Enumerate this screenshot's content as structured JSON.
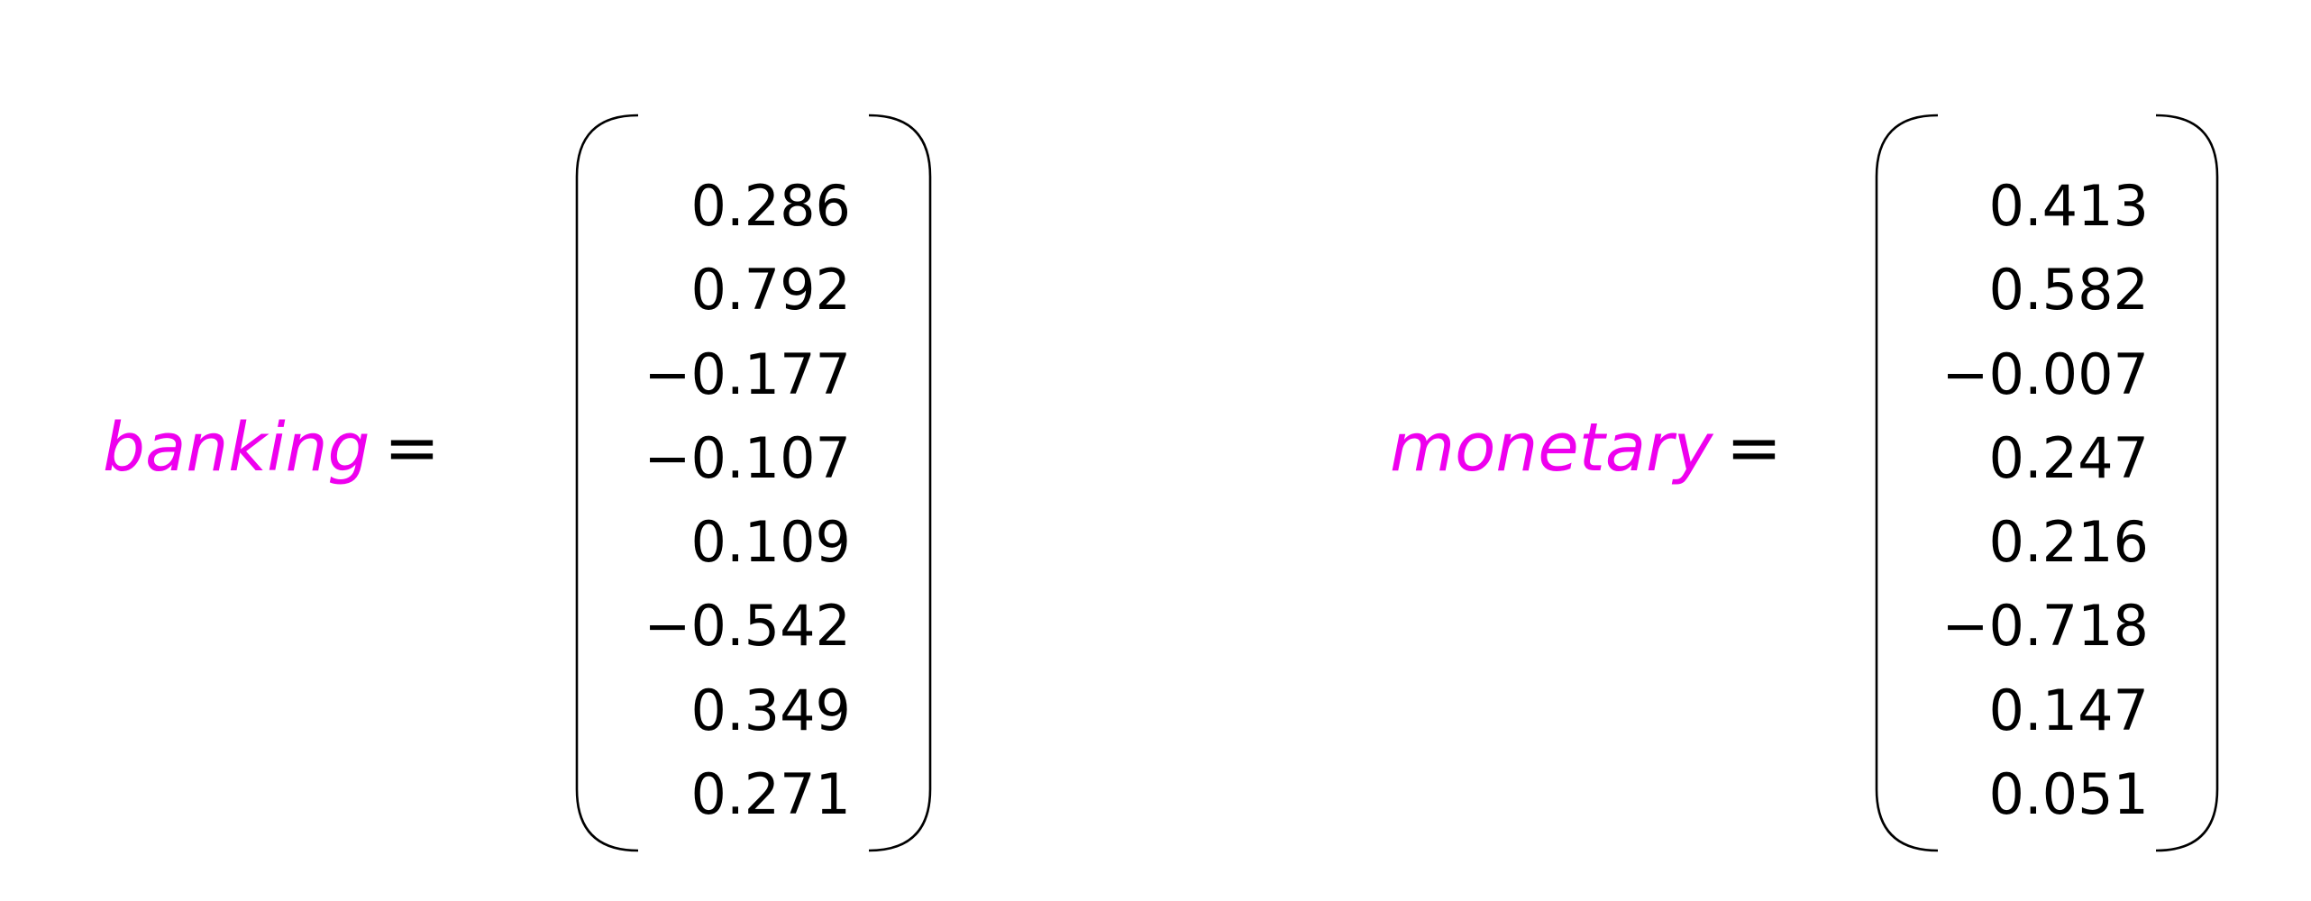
{
  "vectors": [
    {
      "word": "banking",
      "equals": "=",
      "values": [
        "0.286",
        "0.792",
        "−0.177",
        "−0.107",
        "0.109",
        "−0.542",
        "0.349",
        "0.271"
      ]
    },
    {
      "word": "monetary",
      "equals": "=",
      "values": [
        "0.413",
        "0.582",
        "−0.007",
        "0.247",
        "0.216",
        "−0.718",
        "0.147",
        "0.051"
      ]
    }
  ],
  "colors": {
    "word": "#ee00ee",
    "text": "#000000",
    "bracket": "#000000",
    "background": "#ffffff"
  }
}
